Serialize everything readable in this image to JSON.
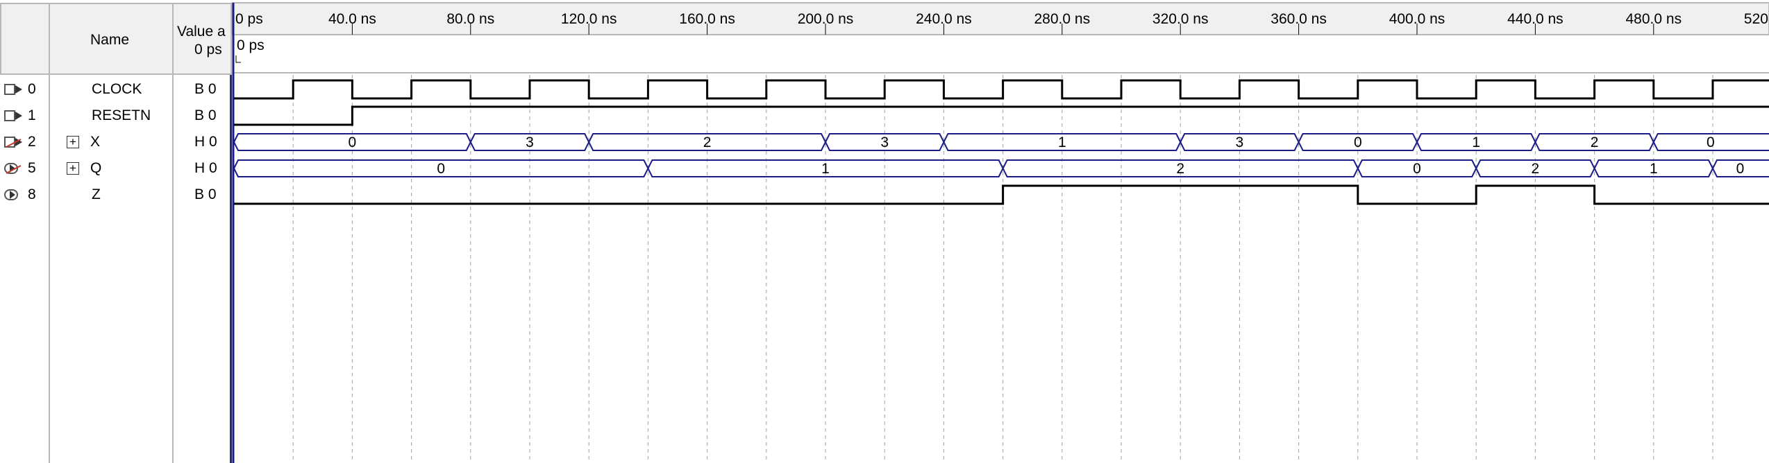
{
  "columns": {
    "name_header": "Name",
    "value_header_line1": "Value a",
    "value_header_line2": "0 ps"
  },
  "timeline": {
    "ticks": [
      "0 ps",
      "40.0 ns",
      "80.0 ns",
      "120.0 ns",
      "160.0 ns",
      "200.0 ns",
      "240.0 ns",
      "280.0 ns",
      "320.0 ns",
      "360.0 ns",
      "400.0 ns",
      "440.0 ns",
      "480.0 ns",
      "520.0 ns"
    ],
    "cursor_label": "0 ps"
  },
  "signals": [
    {
      "index": "0",
      "icon": "input-pin-icon",
      "expand": "",
      "name": "CLOCK",
      "value": "B 0"
    },
    {
      "index": "1",
      "icon": "input-pin-icon",
      "expand": "",
      "name": "RESETN",
      "value": "B 0"
    },
    {
      "index": "2",
      "icon": "input-bus-icon",
      "expand": "+",
      "name": "X",
      "value": "H 0"
    },
    {
      "index": "5",
      "icon": "output-bus-icon",
      "expand": "+",
      "name": "Q",
      "value": "H 0"
    },
    {
      "index": "8",
      "icon": "output-pin-icon",
      "expand": "",
      "name": "Z",
      "value": "B 0"
    }
  ],
  "waveforms": {
    "time_unit": "ns",
    "end_time": 520,
    "clock_period": 40,
    "CLOCK": {
      "initial": 0,
      "edges": [
        20,
        40,
        60,
        80,
        100,
        120,
        140,
        160,
        180,
        200,
        220,
        240,
        260,
        280,
        300,
        320,
        340,
        360,
        380,
        400,
        420,
        440,
        460,
        480,
        500,
        520
      ]
    },
    "RESETN": {
      "initial": 0,
      "edges": [
        40
      ]
    },
    "X": [
      {
        "from": 0,
        "to": 80,
        "label": "0"
      },
      {
        "from": 80,
        "to": 120,
        "label": "3"
      },
      {
        "from": 120,
        "to": 200,
        "label": "2"
      },
      {
        "from": 200,
        "to": 240,
        "label": "3"
      },
      {
        "from": 240,
        "to": 320,
        "label": "1"
      },
      {
        "from": 320,
        "to": 360,
        "label": "3"
      },
      {
        "from": 360,
        "to": 400,
        "label": "0"
      },
      {
        "from": 400,
        "to": 440,
        "label": "1"
      },
      {
        "from": 440,
        "to": 480,
        "label": "2"
      },
      {
        "from": 480,
        "to": 520,
        "label": "0"
      }
    ],
    "Q": [
      {
        "from": 0,
        "to": 140,
        "label": "0"
      },
      {
        "from": 140,
        "to": 260,
        "label": "1"
      },
      {
        "from": 260,
        "to": 380,
        "label": "2"
      },
      {
        "from": 380,
        "to": 420,
        "label": "0"
      },
      {
        "from": 420,
        "to": 460,
        "label": "2"
      },
      {
        "from": 460,
        "to": 500,
        "label": "1"
      },
      {
        "from": 500,
        "to": 520,
        "label": "0"
      }
    ],
    "Z": {
      "initial": 0,
      "edges": [
        260,
        380,
        420,
        460
      ]
    }
  },
  "colors": {
    "bus": "#1b1b8a",
    "line": "#000000",
    "grid": "#a0a0a0",
    "cursor": "#1b1b8a"
  }
}
